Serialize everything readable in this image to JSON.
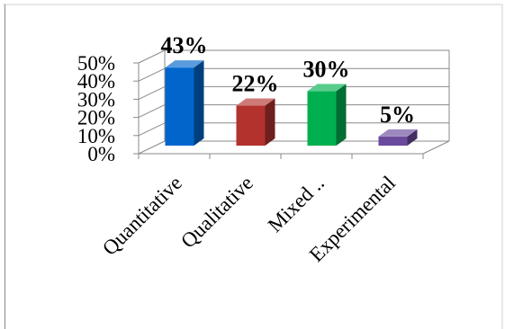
{
  "chart_data": {
    "type": "bar",
    "style": "3d-column",
    "categories": [
      "Quantitative",
      "Qualitative",
      "Mixed ..",
      "Experimental"
    ],
    "values": [
      43,
      22,
      30,
      5
    ],
    "data_labels": [
      "43%",
      "22%",
      "30%",
      "5%"
    ],
    "y_ticks": [
      "0%",
      "10%",
      "20%",
      "30%",
      "40%",
      "50%"
    ],
    "ylim": [
      0,
      50
    ],
    "grid": true,
    "legend": "none",
    "title": "",
    "xlabel": "",
    "ylabel": "",
    "colors": [
      "#0066cc",
      "#b3322e",
      "#00b050",
      "#6a4a9c"
    ]
  }
}
